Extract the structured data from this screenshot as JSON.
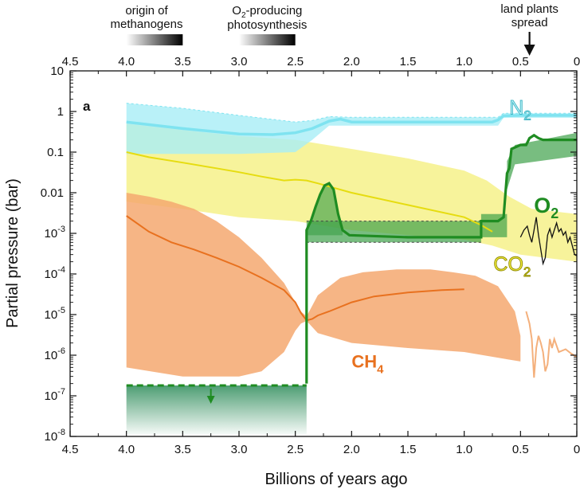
{
  "chart_data": {
    "type": "line",
    "panel_label": "a",
    "xlabel": "Billions of years ago",
    "ylabel": "Partial pressure (bar)",
    "x_ticks": [
      "4.5",
      "4.0",
      "3.5",
      "3.0",
      "2.5",
      "2.0",
      "1.5",
      "1.0",
      "0.5",
      "0"
    ],
    "x_tick_values": [
      4.5,
      4.0,
      3.5,
      3.0,
      2.5,
      2.0,
      1.5,
      1.0,
      0.5,
      0
    ],
    "xlim": [
      4.5,
      0
    ],
    "y_scale": "log",
    "ylim": [
      1e-08,
      10
    ],
    "y_ticks": [
      {
        "value": 10,
        "base": "10",
        "exp": ""
      },
      {
        "value": 1,
        "base": "1",
        "exp": ""
      },
      {
        "value": 0.1,
        "base": "0.1",
        "exp": ""
      },
      {
        "value": 0.01,
        "base": "0.01",
        "exp": ""
      },
      {
        "value": 0.001,
        "base": "10",
        "exp": "-3"
      },
      {
        "value": 0.0001,
        "base": "10",
        "exp": "-4"
      },
      {
        "value": 1e-05,
        "base": "10",
        "exp": "-5"
      },
      {
        "value": 1e-06,
        "base": "10",
        "exp": "-6"
      },
      {
        "value": 1e-07,
        "base": "10",
        "exp": "-7"
      },
      {
        "value": 1e-08,
        "base": "10",
        "exp": "-8"
      }
    ],
    "events": [
      {
        "label_lines": [
          "origin of",
          "methanogens"
        ],
        "range": [
          4.0,
          3.5
        ]
      },
      {
        "label_lines": [
          "O2-producing",
          "photosynthesis"
        ],
        "label_main": "O",
        "label_sub": "2",
        "label_rest": "-producing",
        "label_line2": "photosynthesis",
        "range": [
          3.0,
          2.5
        ]
      },
      {
        "label_lines": [
          "land plants",
          "spread"
        ],
        "at": 0.42
      }
    ],
    "series": [
      {
        "name": "N2",
        "label_main": "N",
        "label_sub": "2",
        "color": "#7fe3f0",
        "band_color": "#a8eef6",
        "label_at": [
          0.6,
          0.85
        ],
        "line": [
          [
            4.0,
            0.55
          ],
          [
            3.5,
            0.38
          ],
          [
            3.0,
            0.28
          ],
          [
            2.7,
            0.27
          ],
          [
            2.5,
            0.3
          ],
          [
            2.35,
            0.38
          ],
          [
            2.2,
            0.58
          ],
          [
            2.1,
            0.65
          ],
          [
            2.0,
            0.55
          ],
          [
            1.5,
            0.55
          ],
          [
            1.0,
            0.55
          ],
          [
            0.9,
            0.55
          ],
          [
            0.75,
            0.55
          ],
          [
            0.7,
            0.62
          ],
          [
            0.65,
            0.78
          ],
          [
            0.5,
            0.8
          ],
          [
            0.0,
            0.8
          ]
        ],
        "band_low": [
          [
            4.0,
            0.09
          ],
          [
            3.5,
            0.09
          ],
          [
            3.0,
            0.09
          ],
          [
            2.5,
            0.1
          ],
          [
            2.35,
            0.2
          ],
          [
            2.2,
            0.45
          ],
          [
            2.0,
            0.45
          ],
          [
            1.0,
            0.45
          ],
          [
            0.7,
            0.45
          ],
          [
            0.65,
            0.7
          ],
          [
            0.0,
            0.7
          ]
        ],
        "band_high": [
          [
            4.0,
            1.6
          ],
          [
            3.5,
            1.2
          ],
          [
            3.0,
            0.8
          ],
          [
            2.5,
            0.55
          ],
          [
            2.35,
            0.6
          ],
          [
            2.2,
            0.75
          ],
          [
            2.0,
            0.72
          ],
          [
            1.0,
            0.72
          ],
          [
            0.7,
            0.72
          ],
          [
            0.65,
            0.9
          ],
          [
            0.0,
            0.9
          ]
        ]
      },
      {
        "name": "CO2",
        "label_main": "CO",
        "label_sub": "2",
        "color": "#e6dc10",
        "band_color": "#f4ef7a",
        "label_at": [
          0.74,
          0.00012
        ],
        "line": [
          [
            4.0,
            0.1
          ],
          [
            3.8,
            0.075
          ],
          [
            3.5,
            0.055
          ],
          [
            3.2,
            0.04
          ],
          [
            3.0,
            0.032
          ],
          [
            2.8,
            0.025
          ],
          [
            2.6,
            0.02
          ],
          [
            2.5,
            0.021
          ],
          [
            2.4,
            0.02
          ],
          [
            2.3,
            0.017
          ],
          [
            2.0,
            0.01
          ],
          [
            1.5,
            0.005
          ],
          [
            1.0,
            0.0025
          ],
          [
            0.85,
            0.0016
          ],
          [
            0.75,
            0.0011
          ]
        ],
        "band_low": [
          [
            4.0,
            0.006
          ],
          [
            3.5,
            0.004
          ],
          [
            3.0,
            0.0025
          ],
          [
            2.5,
            0.002
          ],
          [
            2.0,
            0.0012
          ],
          [
            1.5,
            0.0009
          ],
          [
            1.0,
            0.0007
          ],
          [
            0.75,
            0.0005
          ],
          [
            0.5,
            0.0003
          ],
          [
            0.0,
            0.0002
          ]
        ],
        "band_high": [
          [
            4.0,
            0.5
          ],
          [
            3.5,
            0.35
          ],
          [
            3.0,
            0.25
          ],
          [
            2.5,
            0.2
          ],
          [
            2.0,
            0.12
          ],
          [
            1.5,
            0.07
          ],
          [
            1.0,
            0.035
          ],
          [
            0.8,
            0.02
          ],
          [
            0.6,
            0.008
          ],
          [
            0.4,
            0.004
          ],
          [
            0.0,
            0.003
          ]
        ],
        "phanerozoic": [
          [
            0.5,
            0.0008
          ],
          [
            0.47,
            0.0012
          ],
          [
            0.44,
            0.0015
          ],
          [
            0.42,
            0.0009
          ],
          [
            0.4,
            0.0006
          ],
          [
            0.38,
            0.0012
          ],
          [
            0.36,
            0.0025
          ],
          [
            0.34,
            0.0009
          ],
          [
            0.32,
            0.0004
          ],
          [
            0.3,
            0.00018
          ],
          [
            0.28,
            0.00025
          ],
          [
            0.26,
            0.0009
          ],
          [
            0.24,
            0.0013
          ],
          [
            0.22,
            0.0008
          ],
          [
            0.2,
            0.0012
          ],
          [
            0.18,
            0.0018
          ],
          [
            0.16,
            0.0011
          ],
          [
            0.14,
            0.0013
          ],
          [
            0.12,
            0.0009
          ],
          [
            0.1,
            0.0011
          ],
          [
            0.08,
            0.0006
          ],
          [
            0.06,
            0.0008
          ],
          [
            0.04,
            0.0005
          ],
          [
            0.02,
            0.0003
          ],
          [
            0.0,
            0.00028
          ]
        ]
      },
      {
        "name": "O2",
        "label_main": "O",
        "label_sub": "2",
        "color": "#1f8c22",
        "band_color": "#3fa14a",
        "label_at": [
          0.38,
          0.0032
        ],
        "line": [
          [
            2.4,
            2e-07
          ],
          [
            2.4,
            0.0012
          ],
          [
            2.36,
            0.0021
          ],
          [
            2.32,
            0.0045
          ],
          [
            2.28,
            0.009
          ],
          [
            2.24,
            0.015
          ],
          [
            2.2,
            0.017
          ],
          [
            2.16,
            0.012
          ],
          [
            2.12,
            0.003
          ],
          [
            2.08,
            0.0012
          ],
          [
            2.02,
            0.0009
          ],
          [
            1.5,
            0.0008
          ],
          [
            1.0,
            0.0008
          ],
          [
            0.9,
            0.0008
          ],
          [
            0.85,
            0.0008
          ],
          [
            0.85,
            0.002
          ],
          [
            0.7,
            0.002
          ],
          [
            0.65,
            0.0025
          ],
          [
            0.62,
            0.03
          ],
          [
            0.6,
            0.04
          ],
          [
            0.58,
            0.12
          ],
          [
            0.5,
            0.15
          ],
          [
            0.45,
            0.15
          ],
          [
            0.42,
            0.22
          ],
          [
            0.38,
            0.26
          ],
          [
            0.34,
            0.22
          ],
          [
            0.3,
            0.2
          ],
          [
            0.0,
            0.2
          ]
        ],
        "dashed_upper": [
          [
            4.0,
            1.8e-07
          ],
          [
            2.4,
            1.8e-07
          ]
        ],
        "band_low": [
          [
            2.4,
            0.0006
          ],
          [
            0.85,
            0.0006
          ],
          [
            0.85,
            0.0008
          ],
          [
            0.62,
            0.0008
          ],
          [
            0.62,
            0.012
          ],
          [
            0.55,
            0.05
          ],
          [
            0.0,
            0.08
          ]
        ],
        "band_high": [
          [
            2.4,
            0.002
          ],
          [
            0.85,
            0.002
          ],
          [
            0.85,
            0.003
          ],
          [
            0.62,
            0.003
          ],
          [
            0.62,
            0.06
          ],
          [
            0.55,
            0.15
          ],
          [
            0.0,
            0.3
          ]
        ]
      },
      {
        "name": "CH4",
        "label_main": "CH",
        "label_sub": "4",
        "color": "#e8711f",
        "band_color": "#f4a870",
        "label_at": [
          2.0,
          5e-07
        ],
        "line": [
          [
            4.0,
            0.0027
          ],
          [
            3.8,
            0.0011
          ],
          [
            3.6,
            0.0006
          ],
          [
            3.4,
            0.0004
          ],
          [
            3.2,
            0.00025
          ],
          [
            3.0,
            0.00015
          ],
          [
            2.8,
            8e-05
          ],
          [
            2.6,
            4e-05
          ],
          [
            2.5,
            2e-05
          ],
          [
            2.45,
            1.1e-05
          ],
          [
            2.4,
            7.2e-06
          ],
          [
            2.35,
            7.8e-06
          ],
          [
            2.3,
            9.5e-06
          ],
          [
            2.2,
            1.2e-05
          ],
          [
            2.0,
            2e-05
          ],
          [
            1.8,
            2.8e-05
          ],
          [
            1.5,
            3.5e-05
          ],
          [
            1.2,
            4e-05
          ],
          [
            1.0,
            4.2e-05
          ]
        ],
        "band_low": [
          [
            4.0,
            5e-07
          ],
          [
            3.5,
            3e-07
          ],
          [
            3.0,
            3e-07
          ],
          [
            2.8,
            4e-07
          ],
          [
            2.6,
            1.2e-06
          ],
          [
            2.5,
            4e-06
          ],
          [
            2.45,
            6e-06
          ],
          [
            2.4,
            7e-06
          ],
          [
            2.3,
            3.5e-06
          ],
          [
            2.0,
            2e-06
          ],
          [
            1.5,
            1.5e-06
          ],
          [
            1.0,
            1.2e-06
          ],
          [
            0.5,
            7e-07
          ]
        ],
        "band_high": [
          [
            4.0,
            0.01
          ],
          [
            3.8,
            0.008
          ],
          [
            3.6,
            0.006
          ],
          [
            3.4,
            0.004
          ],
          [
            3.2,
            0.002
          ],
          [
            3.0,
            0.0008
          ],
          [
            2.8,
            0.00025
          ],
          [
            2.6,
            6e-05
          ],
          [
            2.5,
            2e-05
          ],
          [
            2.45,
            1.2e-05
          ],
          [
            2.4,
            9e-06
          ],
          [
            2.3,
            3e-05
          ],
          [
            2.1,
            8e-05
          ],
          [
            1.9,
            0.00011
          ],
          [
            1.6,
            0.00013
          ],
          [
            1.3,
            0.00013
          ],
          [
            1.1,
            0.00011
          ],
          [
            1.0,
            0.0001
          ],
          [
            0.9,
            9e-05
          ],
          [
            0.7,
            5e-05
          ],
          [
            0.55,
            1.2e-05
          ],
          [
            0.5,
            3e-06
          ]
        ],
        "phanerozoic": [
          [
            0.45,
            1.2e-05
          ],
          [
            0.42,
            6e-06
          ],
          [
            0.4,
            2.5e-06
          ],
          [
            0.38,
            2.8e-07
          ],
          [
            0.36,
            1.5e-06
          ],
          [
            0.34,
            3e-06
          ],
          [
            0.32,
            2e-06
          ],
          [
            0.3,
            1.2e-06
          ],
          [
            0.28,
            4e-07
          ],
          [
            0.26,
            6e-07
          ],
          [
            0.24,
            2.5e-06
          ],
          [
            0.22,
            1.5e-06
          ],
          [
            0.2,
            2.5e-06
          ],
          [
            0.16,
            1.2e-06
          ],
          [
            0.1,
            1.4e-06
          ],
          [
            0.05,
            1.1e-06
          ],
          [
            0.0,
            9e-07
          ]
        ]
      }
    ],
    "annotations": [
      {
        "type": "down-arrow",
        "series": "O2",
        "at": [
          3.25,
          1.2e-07
        ]
      }
    ]
  }
}
